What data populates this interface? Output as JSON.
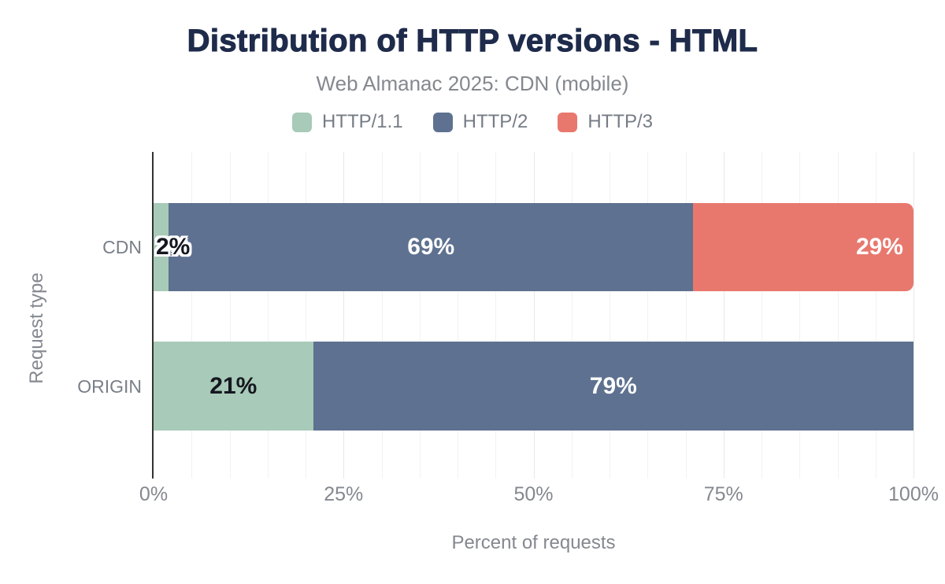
{
  "header": {
    "title": "Distribution of HTTP versions - HTML",
    "subtitle": "Web Almanac 2025: CDN (mobile)"
  },
  "chart_data": {
    "type": "bar",
    "orientation": "horizontal",
    "stacked": true,
    "title": "Distribution of HTTP versions - HTML",
    "subtitle": "Web Almanac 2025: CDN (mobile)",
    "xlabel": "Percent of requests",
    "ylabel": "Request type",
    "xlim": [
      0,
      100
    ],
    "x_ticks": [
      {
        "value": 0,
        "label": "0%"
      },
      {
        "value": 25,
        "label": "25%"
      },
      {
        "value": 50,
        "label": "50%"
      },
      {
        "value": 75,
        "label": "75%"
      },
      {
        "value": 100,
        "label": "100%"
      }
    ],
    "grid": {
      "minor_step": 5,
      "major_step": 25
    },
    "legend_position": "top",
    "categories": [
      "CDN",
      "ORIGIN"
    ],
    "series": [
      {
        "name": "HTTP/1.1",
        "color": "#a8cab8",
        "values": [
          2,
          21
        ]
      },
      {
        "name": "HTTP/2",
        "color": "#5e7190",
        "values": [
          69,
          79
        ]
      },
      {
        "name": "HTTP/3",
        "color": "#e8786e",
        "values": [
          29,
          0
        ]
      }
    ],
    "bars": [
      {
        "category": "CDN",
        "rounded_end": true,
        "segments": [
          {
            "series": "HTTP/1.1",
            "value": 2,
            "label": "2%",
            "label_variant": "dark-outline",
            "label_align": "left"
          },
          {
            "series": "HTTP/2",
            "value": 69,
            "label": "69%",
            "label_variant": "light",
            "label_align": "center"
          },
          {
            "series": "HTTP/3",
            "value": 29,
            "label": "29%",
            "label_variant": "light",
            "label_align": "right"
          }
        ]
      },
      {
        "category": "ORIGIN",
        "rounded_end": false,
        "segments": [
          {
            "series": "HTTP/1.1",
            "value": 21,
            "label": "21%",
            "label_variant": "dark",
            "label_align": "center"
          },
          {
            "series": "HTTP/2",
            "value": 79,
            "label": "79%",
            "label_variant": "light",
            "label_align": "center"
          }
        ]
      }
    ],
    "colors": {
      "title": "#1f2b4b",
      "axis_text": "#84888f",
      "category_text": "#787f88",
      "legend_text": "#767c85",
      "label_dark": "#14171f",
      "label_light": "#ffffff",
      "axis_line": "#333333",
      "grid_minor": "#f2f2f2",
      "grid_major": "#e8e8e8",
      "background": "#ffffff"
    }
  }
}
